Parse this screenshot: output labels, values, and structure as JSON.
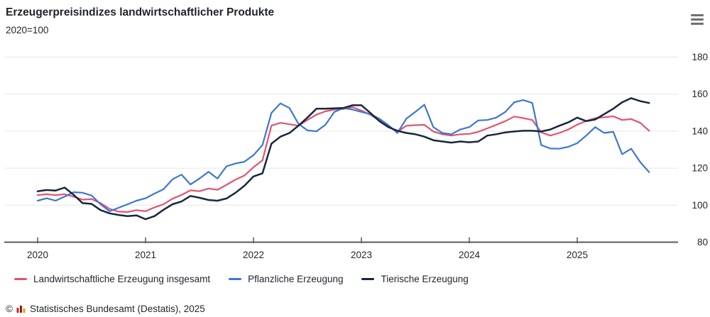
{
  "header": {
    "title": "Erzeugerpreisindizes landwirtschaftlicher Produkte",
    "subtitle": "2020=100"
  },
  "menu": {
    "icon": "hamburger-menu-icon"
  },
  "chart_data": {
    "type": "line",
    "title": "Erzeugerpreisindizes landwirtschaftlicher Produkte",
    "index_base": "2020=100",
    "frequency": "monthly",
    "x_start": "2020-01",
    "x_end": "2025-09",
    "x_ticks": [
      "2020",
      "2021",
      "2022",
      "2023",
      "2024",
      "2025"
    ],
    "y_ticks": [
      180,
      160,
      140,
      120,
      100,
      80
    ],
    "ylim": [
      80,
      180
    ],
    "layout": {
      "grid": "horizontal",
      "y_axis_side": "right",
      "legend_position": "bottom",
      "grid_color": "#e6e6e6",
      "axis_color": "#565b61",
      "text_color": "#22272d"
    },
    "series": [
      {
        "name": "Landwirtschaftliche Erzeugung insgesamt",
        "color": "#e5526f",
        "values": [
          105.4,
          105.9,
          105.4,
          105.9,
          104.6,
          103.0,
          103.3,
          101.1,
          98.0,
          96.5,
          96.3,
          97.3,
          96.7,
          98.8,
          100.5,
          103.5,
          105.5,
          108.0,
          107.5,
          109.0,
          108.3,
          111.0,
          113.8,
          116.0,
          120.5,
          124.2,
          143.0,
          144.5,
          143.7,
          142.9,
          146.0,
          148.9,
          150.7,
          151.7,
          152.0,
          153.0,
          151.1,
          148.8,
          145.8,
          142.5,
          139.6,
          142.9,
          143.2,
          143.4,
          139.8,
          138.3,
          137.6,
          138.3,
          138.5,
          139.6,
          141.5,
          143.4,
          145.4,
          147.9,
          147.0,
          146.0,
          139.3,
          137.6,
          139.0,
          140.9,
          143.5,
          145.5,
          147.0,
          147.5,
          148.0,
          146.0,
          146.5,
          144.5,
          140.2
        ]
      },
      {
        "name": "Pflanzliche Erzeugung",
        "color": "#3b76d6",
        "values": [
          102.4,
          103.7,
          102.4,
          104.6,
          107.0,
          106.7,
          105.2,
          100.5,
          96.7,
          98.6,
          100.5,
          102.4,
          103.7,
          106.3,
          108.6,
          114.0,
          116.5,
          111.2,
          114.4,
          118.0,
          114.4,
          121.0,
          122.5,
          123.5,
          127.0,
          132.5,
          149.8,
          155.0,
          152.5,
          144.0,
          140.4,
          139.9,
          143.4,
          150.4,
          152.4,
          151.7,
          150.4,
          149.2,
          146.7,
          143.2,
          139.0,
          146.7,
          150.4,
          154.3,
          142.2,
          139.0,
          138.3,
          140.9,
          142.2,
          145.8,
          146.0,
          147.3,
          150.4,
          155.6,
          156.8,
          155.2,
          132.5,
          130.6,
          130.5,
          131.5,
          133.5,
          137.6,
          142.2,
          139.0,
          139.6,
          127.5,
          130.5,
          123.3,
          117.8
        ]
      },
      {
        "name": "Tierische Erzeugung",
        "color": "#17273d",
        "values": [
          107.5,
          108.2,
          107.9,
          109.5,
          105.6,
          101.1,
          100.7,
          97.3,
          95.6,
          94.7,
          94.1,
          94.5,
          92.4,
          94.1,
          97.5,
          100.5,
          102.0,
          105.0,
          104.0,
          102.8,
          102.4,
          103.6,
          106.7,
          110.5,
          115.5,
          117.2,
          133.2,
          137.0,
          139.0,
          142.9,
          147.3,
          152.1,
          152.1,
          152.3,
          152.5,
          154.0,
          154.0,
          149.8,
          145.4,
          142.2,
          140.2,
          139.0,
          138.3,
          137.0,
          135.1,
          134.4,
          133.8,
          134.4,
          134.0,
          134.4,
          137.6,
          138.3,
          139.3,
          139.8,
          140.2,
          140.2,
          139.8,
          140.9,
          142.9,
          144.7,
          147.3,
          145.4,
          146.3,
          149.2,
          152.1,
          155.6,
          157.8,
          156.2,
          155.2
        ]
      }
    ]
  },
  "footer": {
    "copyright": "©",
    "source": "Statistisches Bundesamt (Destatis), 2025"
  }
}
